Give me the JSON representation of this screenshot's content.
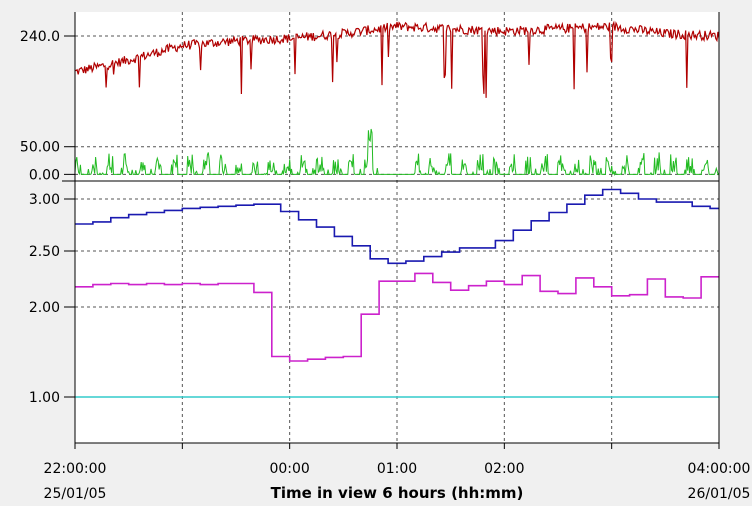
{
  "chart_data": {
    "type": "line",
    "xlabel": "Time in view 6 hours (hh:mm)",
    "x_ticks": [
      {
        "time": "22:00",
        "label": "22:00:00",
        "date": "25/01/05"
      },
      {
        "time": "23:00",
        "label": "",
        "date": ""
      },
      {
        "time": "00:00",
        "label": "00:00",
        "date": ""
      },
      {
        "time": "01:00",
        "label": "01:00",
        "date": ""
      },
      {
        "time": "02:00",
        "label": "02:00",
        "date": ""
      },
      {
        "time": "03:00",
        "label": "",
        "date": ""
      },
      {
        "time": "04:00",
        "label": "04:00:00",
        "date": "26/01/05"
      }
    ],
    "panels": [
      {
        "name": "top",
        "ylim": [
          210,
          250
        ],
        "y_ticks": [
          {
            "value": 240,
            "label": "240.0"
          }
        ],
        "grid": true,
        "series": [
          {
            "color": "#b00000",
            "type": "noisy-spikes",
            "baseline": [
              [
                "22:00",
                225
              ],
              [
                "22:30",
                230
              ],
              [
                "23:00",
                236
              ],
              [
                "23:30",
                238
              ],
              [
                "00:00",
                239
              ],
              [
                "00:30",
                241
              ],
              [
                "01:00",
                244
              ],
              [
                "01:30",
                243
              ],
              [
                "02:00",
                242
              ],
              [
                "02:30",
                243
              ],
              [
                "03:00",
                244
              ],
              [
                "03:30",
                241
              ],
              [
                "04:00",
                240
              ]
            ],
            "dip_to": 214
          }
        ]
      },
      {
        "name": "middle",
        "ylim": [
          -12,
          120
        ],
        "y_ticks": [
          {
            "value": 50,
            "label": "50.00"
          },
          {
            "value": 0,
            "label": "0.00"
          }
        ],
        "grid": true,
        "series": [
          {
            "color": "#22bb22",
            "type": "bursts",
            "active_ranges": [
              [
                "22:00",
                "00:50"
              ],
              [
                "01:10",
                "04:00"
              ]
            ],
            "peak": 45,
            "max_peak": [
              "00:45",
              85
            ]
          }
        ]
      },
      {
        "name": "bottom",
        "scale": "custom",
        "y_ticks": [
          {
            "value": 3.0,
            "label": "3.00"
          },
          {
            "value": 2.5,
            "label": "2.50"
          },
          {
            "value": 2.0,
            "label": "2.00"
          },
          {
            "value": 1.0,
            "label": "1.00"
          }
        ],
        "grid": true,
        "series": [
          {
            "color": "#1a1ab0",
            "type": "step",
            "points": [
              [
                "22:00",
                2.76
              ],
              [
                "22:10",
                2.78
              ],
              [
                "22:20",
                2.82
              ],
              [
                "22:30",
                2.85
              ],
              [
                "22:40",
                2.87
              ],
              [
                "22:50",
                2.89
              ],
              [
                "23:00",
                2.91
              ],
              [
                "23:10",
                2.92
              ],
              [
                "23:20",
                2.93
              ],
              [
                "23:30",
                2.94
              ],
              [
                "23:40",
                2.95
              ],
              [
                "23:50",
                2.95
              ],
              [
                "23:55",
                2.88
              ],
              [
                "00:05",
                2.8
              ],
              [
                "00:15",
                2.73
              ],
              [
                "00:25",
                2.64
              ],
              [
                "00:35",
                2.55
              ],
              [
                "00:45",
                2.43
              ],
              [
                "00:55",
                2.39
              ],
              [
                "01:05",
                2.41
              ],
              [
                "01:15",
                2.45
              ],
              [
                "01:25",
                2.49
              ],
              [
                "01:35",
                2.53
              ],
              [
                "01:45",
                2.53
              ],
              [
                "01:55",
                2.6
              ],
              [
                "02:05",
                2.7
              ],
              [
                "02:15",
                2.79
              ],
              [
                "02:25",
                2.87
              ],
              [
                "02:35",
                2.95
              ],
              [
                "02:45",
                3.04
              ],
              [
                "02:55",
                3.1
              ],
              [
                "03:05",
                3.06
              ],
              [
                "03:15",
                3.0
              ],
              [
                "03:25",
                2.97
              ],
              [
                "03:35",
                2.97
              ],
              [
                "03:45",
                2.93
              ],
              [
                "03:55",
                2.91
              ],
              [
                "04:00",
                2.91
              ]
            ]
          },
          {
            "color": "#cc22cc",
            "type": "step",
            "points": [
              [
                "22:00",
                2.18
              ],
              [
                "22:10",
                2.2
              ],
              [
                "22:20",
                2.21
              ],
              [
                "22:30",
                2.2
              ],
              [
                "22:40",
                2.21
              ],
              [
                "22:50",
                2.2
              ],
              [
                "23:00",
                2.21
              ],
              [
                "23:10",
                2.2
              ],
              [
                "23:20",
                2.21
              ],
              [
                "23:30",
                2.21
              ],
              [
                "23:40",
                2.13
              ],
              [
                "23:50",
                1.45
              ],
              [
                "00:00",
                1.4
              ],
              [
                "00:10",
                1.42
              ],
              [
                "00:20",
                1.44
              ],
              [
                "00:30",
                1.45
              ],
              [
                "00:40",
                1.92
              ],
              [
                "00:50",
                2.23
              ],
              [
                "01:00",
                2.23
              ],
              [
                "01:10",
                2.3
              ],
              [
                "01:20",
                2.22
              ],
              [
                "01:30",
                2.15
              ],
              [
                "01:40",
                2.19
              ],
              [
                "01:50",
                2.23
              ],
              [
                "02:00",
                2.2
              ],
              [
                "02:10",
                2.28
              ],
              [
                "02:20",
                2.14
              ],
              [
                "02:30",
                2.12
              ],
              [
                "02:40",
                2.26
              ],
              [
                "02:50",
                2.18
              ],
              [
                "03:00",
                2.1
              ],
              [
                "03:10",
                2.11
              ],
              [
                "03:20",
                2.25
              ],
              [
                "03:30",
                2.09
              ],
              [
                "03:40",
                2.08
              ],
              [
                "03:50",
                2.27
              ],
              [
                "04:00",
                2.27
              ]
            ]
          },
          {
            "color": "#33cccc",
            "type": "line",
            "points": [
              [
                "22:00",
                1.0
              ],
              [
                "04:00",
                1.0
              ]
            ]
          }
        ]
      }
    ]
  }
}
